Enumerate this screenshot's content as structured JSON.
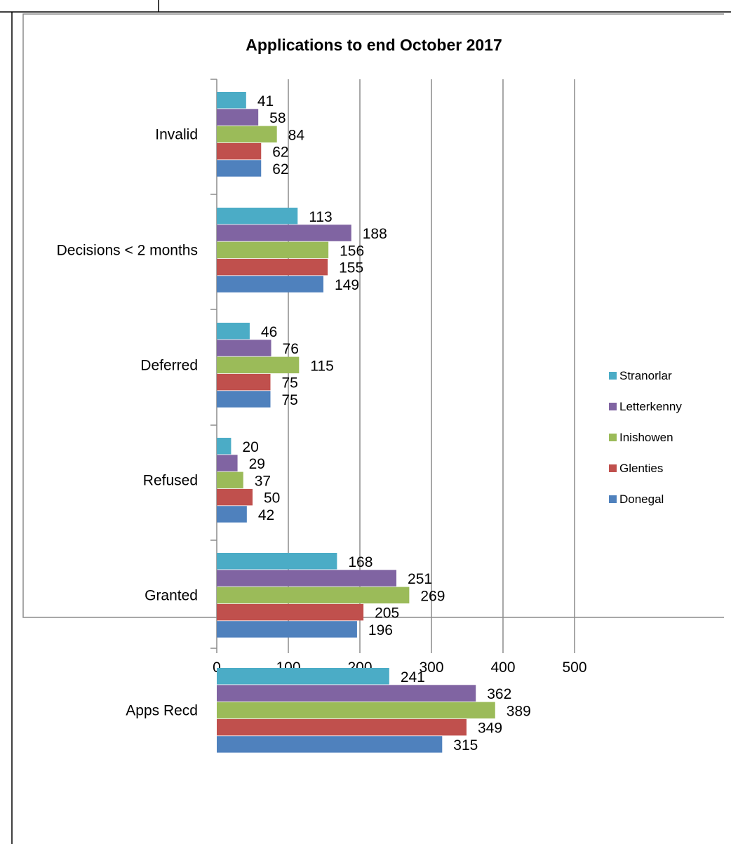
{
  "chart_data": {
    "type": "bar",
    "orientation": "horizontal",
    "title": "Applications to end October 2017",
    "categories": [
      "Invalid",
      "Decisions <  2 months",
      "Deferred",
      "Refused",
      "Granted",
      "Apps Recd"
    ],
    "series": [
      {
        "name": "Stranorlar",
        "color": "#4BACC6",
        "values": [
          41,
          113,
          46,
          20,
          168,
          241
        ]
      },
      {
        "name": "Letterkenny",
        "color": "#8064A2",
        "values": [
          58,
          188,
          76,
          29,
          251,
          362
        ]
      },
      {
        "name": "Inishowen",
        "color": "#9BBB59",
        "values": [
          84,
          156,
          115,
          37,
          269,
          389
        ]
      },
      {
        "name": "Glenties",
        "color": "#C0504D",
        "values": [
          62,
          155,
          75,
          50,
          205,
          349
        ]
      },
      {
        "name": "Donegal",
        "color": "#4F81BD",
        "values": [
          62,
          149,
          75,
          42,
          196,
          315
        ]
      }
    ],
    "xlim": [
      0,
      500
    ],
    "x_ticks": [
      "0",
      "100",
      "200",
      "300",
      "400",
      "500"
    ],
    "grid": "vertical major gridlines",
    "legend_position": "right",
    "data_labels": true
  }
}
